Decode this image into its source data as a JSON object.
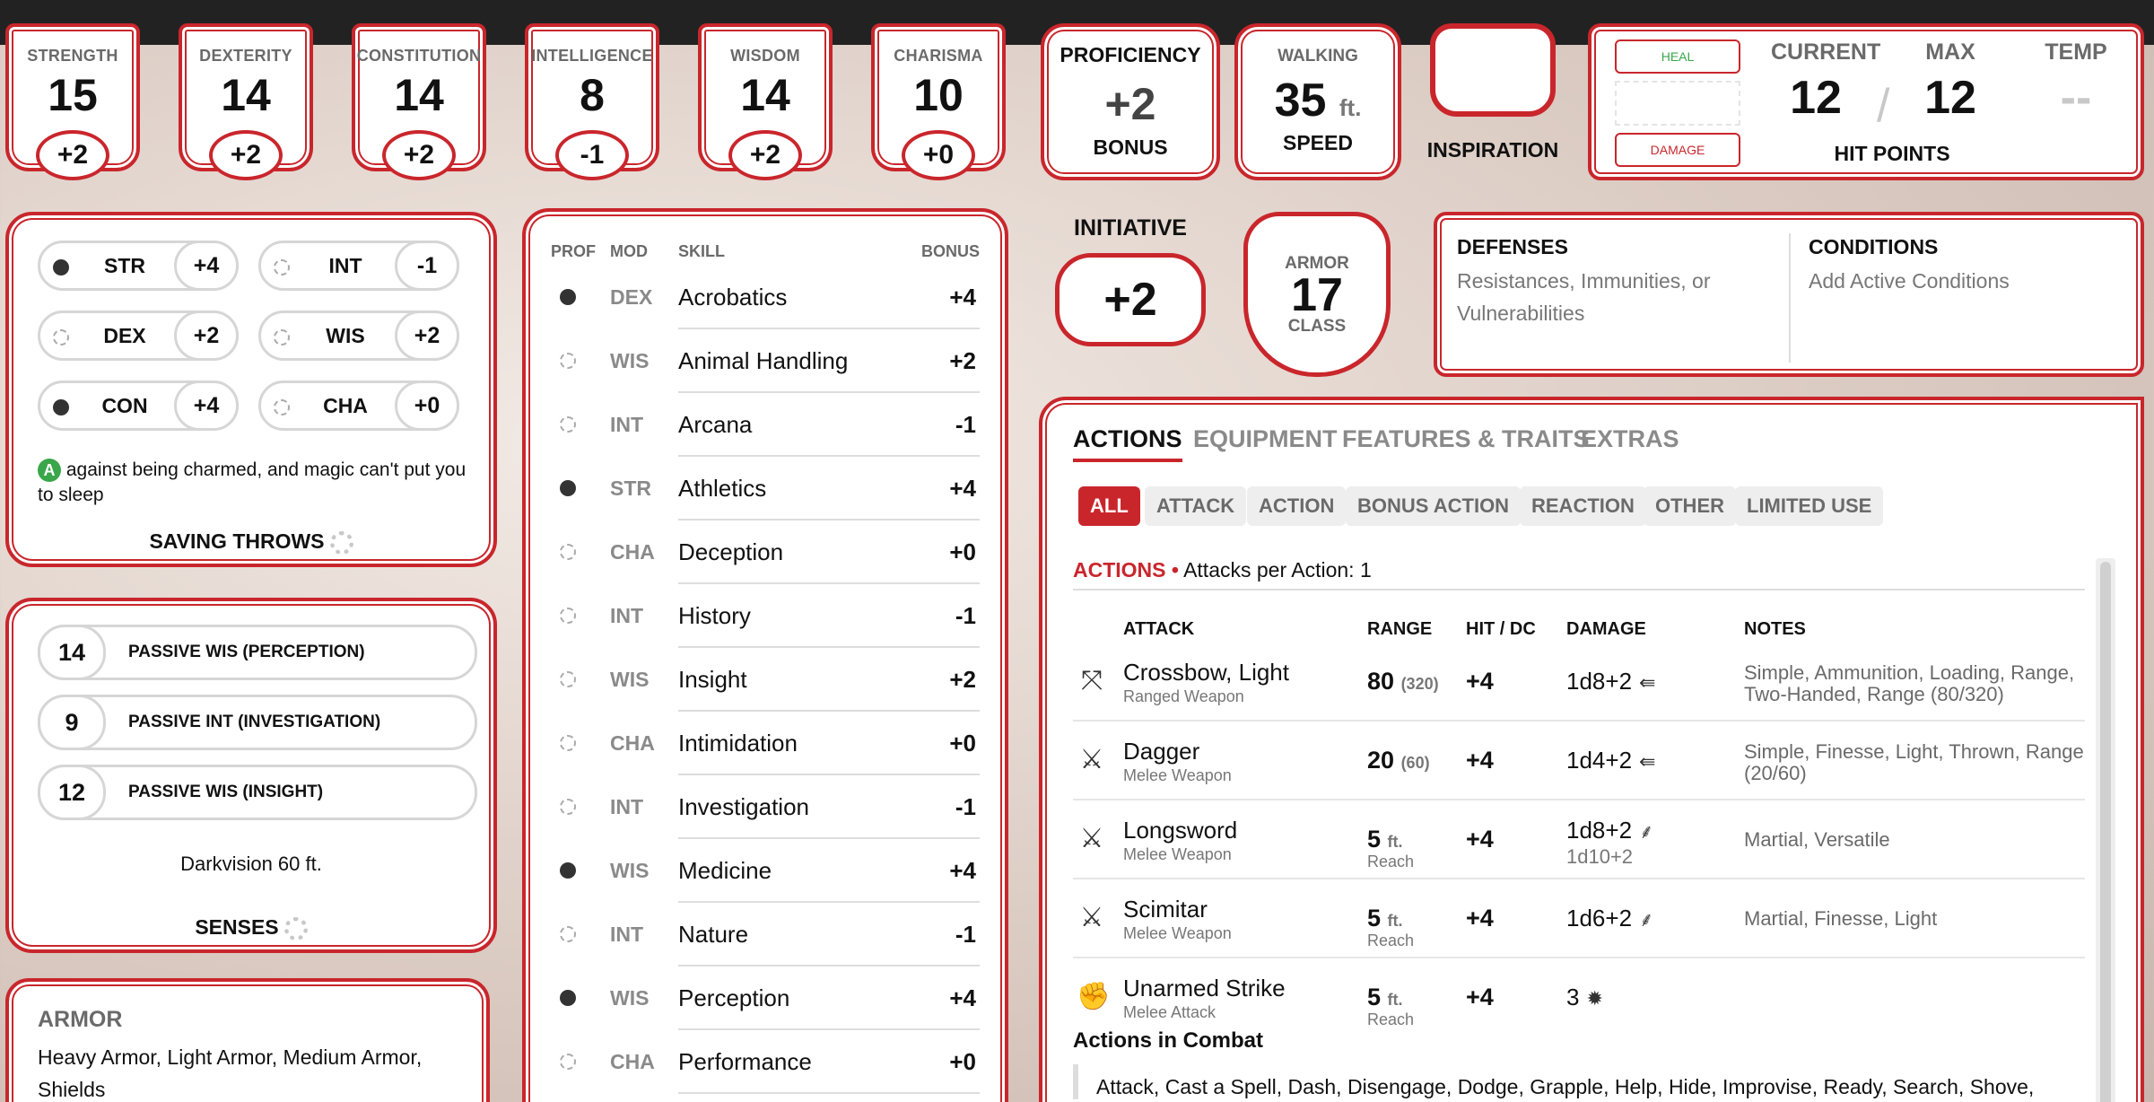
{
  "abilities": [
    {
      "label": "STRENGTH",
      "score": "15",
      "mod": "+2"
    },
    {
      "label": "DEXTERITY",
      "score": "14",
      "mod": "+2"
    },
    {
      "label": "CONSTITUTION",
      "score": "14",
      "mod": "+2"
    },
    {
      "label": "INTELLIGENCE",
      "score": "8",
      "mod": "-1"
    },
    {
      "label": "WISDOM",
      "score": "14",
      "mod": "+2"
    },
    {
      "label": "CHARISMA",
      "score": "10",
      "mod": "+0"
    }
  ],
  "proficiency": {
    "title": "PROFICIENCY",
    "value": "+2",
    "label": "BONUS"
  },
  "speed": {
    "title": "WALKING",
    "value": "35",
    "unit": "ft.",
    "label": "SPEED"
  },
  "inspiration": {
    "label": "INSPIRATION"
  },
  "hit_points": {
    "heal_label": "HEAL",
    "damage_label": "DAMAGE",
    "current_label": "CURRENT",
    "max_label": "MAX",
    "temp_label": "TEMP",
    "current": "12",
    "slash": "/",
    "max": "12",
    "temp": "--",
    "label": "HIT POINTS"
  },
  "initiative": {
    "title": "INITIATIVE",
    "value": "+2"
  },
  "armor": {
    "top": "ARMOR",
    "value": "17",
    "bottom": "CLASS"
  },
  "defenses": {
    "title": "DEFENSES",
    "text": "Resistances, Immunities, or Vulnerabilities"
  },
  "conditions": {
    "title": "CONDITIONS",
    "text": "Add Active Conditions"
  },
  "saving_throws": {
    "items": [
      {
        "name": "STR",
        "bonus": "+4",
        "proficient": true
      },
      {
        "name": "INT",
        "bonus": "-1",
        "proficient": false
      },
      {
        "name": "DEX",
        "bonus": "+2",
        "proficient": false
      },
      {
        "name": "WIS",
        "bonus": "+2",
        "proficient": false
      },
      {
        "name": "CON",
        "bonus": "+4",
        "proficient": true
      },
      {
        "name": "CHA",
        "bonus": "+0",
        "proficient": false
      }
    ],
    "adv_badge": "A",
    "note": "against being charmed, and magic can't put you to sleep",
    "label": "SAVING THROWS"
  },
  "senses": {
    "items": [
      {
        "value": "14",
        "label": "PASSIVE WIS (PERCEPTION)"
      },
      {
        "value": "9",
        "label": "PASSIVE INT (INVESTIGATION)"
      },
      {
        "value": "12",
        "label": "PASSIVE WIS (INSIGHT)"
      }
    ],
    "darkvision": "Darkvision 60 ft.",
    "label": "SENSES"
  },
  "proficiencies": {
    "armor_title": "ARMOR",
    "armor_text": "Heavy Armor, Light Armor, Medium Armor, Shields"
  },
  "skills": {
    "headers": {
      "prof": "PROF",
      "mod": "MOD",
      "skill": "SKILL",
      "bonus": "BONUS"
    },
    "items": [
      {
        "mod": "DEX",
        "name": "Acrobatics",
        "bonus": "+4",
        "proficient": true
      },
      {
        "mod": "WIS",
        "name": "Animal Handling",
        "bonus": "+2",
        "proficient": false
      },
      {
        "mod": "INT",
        "name": "Arcana",
        "bonus": "-1",
        "proficient": false
      },
      {
        "mod": "STR",
        "name": "Athletics",
        "bonus": "+4",
        "proficient": true
      },
      {
        "mod": "CHA",
        "name": "Deception",
        "bonus": "+0",
        "proficient": false
      },
      {
        "mod": "INT",
        "name": "History",
        "bonus": "-1",
        "proficient": false
      },
      {
        "mod": "WIS",
        "name": "Insight",
        "bonus": "+2",
        "proficient": false
      },
      {
        "mod": "CHA",
        "name": "Intimidation",
        "bonus": "+0",
        "proficient": false
      },
      {
        "mod": "INT",
        "name": "Investigation",
        "bonus": "-1",
        "proficient": false
      },
      {
        "mod": "WIS",
        "name": "Medicine",
        "bonus": "+4",
        "proficient": true
      },
      {
        "mod": "INT",
        "name": "Nature",
        "bonus": "-1",
        "proficient": false
      },
      {
        "mod": "WIS",
        "name": "Perception",
        "bonus": "+4",
        "proficient": true
      },
      {
        "mod": "CHA",
        "name": "Performance",
        "bonus": "+0",
        "proficient": false
      }
    ]
  },
  "actions_panel": {
    "tabs": [
      "ACTIONS",
      "EQUIPMENT",
      "FEATURES & TRAITS",
      "EXTRAS"
    ],
    "filters": [
      "ALL",
      "ATTACK",
      "ACTION",
      "BONUS ACTION",
      "REACTION",
      "OTHER",
      "LIMITED USE"
    ],
    "section_title": "ACTIONS",
    "bullet": "•",
    "attacks_per_action": "Attacks per Action: 1",
    "columns": {
      "attack": "ATTACK",
      "range": "RANGE",
      "hit": "HIT / DC",
      "damage": "DAMAGE",
      "notes": "NOTES"
    },
    "attacks": [
      {
        "icon": "crossbow-icon",
        "name": "Crossbow, Light",
        "type": "Ranged Weapon",
        "range": "80",
        "range_long": "(320)",
        "range_sub": "",
        "hit": "+4",
        "damage": "1d8+2",
        "damage_alt": "",
        "damage_icon": "piercing-icon",
        "notes": "Simple, Ammunition, Loading, Range, Two-Handed, Range (80/320)"
      },
      {
        "icon": "melee-icon",
        "name": "Dagger",
        "type": "Melee Weapon",
        "range": "20",
        "range_long": "(60)",
        "range_sub": "",
        "hit": "+4",
        "damage": "1d4+2",
        "damage_alt": "",
        "damage_icon": "piercing-icon",
        "notes": "Simple, Finesse, Light, Thrown, Range (20/60)"
      },
      {
        "icon": "melee-icon",
        "name": "Longsword",
        "type": "Melee Weapon",
        "range": "5",
        "range_long": "ft.",
        "range_sub": "Reach",
        "hit": "+4",
        "damage": "1d8+2",
        "damage_alt": "1d10+2",
        "damage_icon": "slashing-icon",
        "notes": "Martial, Versatile"
      },
      {
        "icon": "melee-icon",
        "name": "Scimitar",
        "type": "Melee Weapon",
        "range": "5",
        "range_long": "ft.",
        "range_sub": "Reach",
        "hit": "+4",
        "damage": "1d6+2",
        "damage_alt": "",
        "damage_icon": "slashing-icon",
        "notes": "Martial, Finesse, Light"
      },
      {
        "icon": "fist-icon",
        "name": "Unarmed Strike",
        "type": "Melee Attack",
        "range": "5",
        "range_long": "ft.",
        "range_sub": "Reach",
        "hit": "+4",
        "damage": "3",
        "damage_alt": "",
        "damage_icon": "bludgeoning-icon",
        "notes": ""
      }
    ],
    "combat_title": "Actions in Combat",
    "combat_text": "Attack, Cast a Spell, Dash, Disengage, Dodge, Grapple, Help, Hide, Improvise, Ready, Search, Shove,"
  },
  "colors": {
    "accent": "#c9262c",
    "advantage": "#3aa64a",
    "topbar": "#222222"
  }
}
